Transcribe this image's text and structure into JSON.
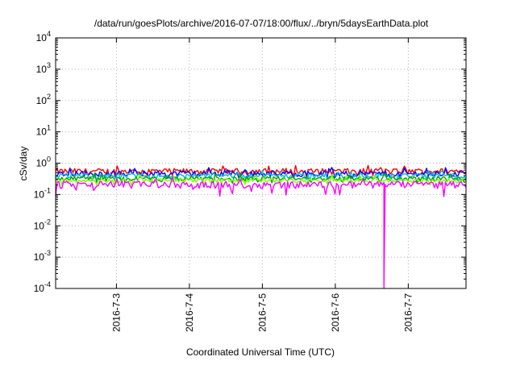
{
  "chart_data": {
    "type": "line",
    "title": "/data/run/goesPlots/archive/2016-07-07/18:00/flux/../bryn/5daysEarthData.plot",
    "xlabel": "Coordinated Universal Time (UTC)",
    "ylabel": "cSv/day",
    "yscale": "log",
    "ylim": [
      0.0001,
      10000
    ],
    "xlim": [
      "2016-07-02 04:00",
      "2016-07-07 19:00"
    ],
    "grid": true,
    "x_ticks": [
      "2016-7-3",
      "2016-7-4",
      "2016-7-5",
      "2016-7-6",
      "2016-7-7"
    ],
    "y_ticks": [
      {
        "base": "10",
        "exp": "-4",
        "value": 0.0001
      },
      {
        "base": "10",
        "exp": "-3",
        "value": 0.001
      },
      {
        "base": "10",
        "exp": "-2",
        "value": 0.01
      },
      {
        "base": "10",
        "exp": "-1",
        "value": 0.1
      },
      {
        "base": "10",
        "exp": "0",
        "value": 1
      },
      {
        "base": "10",
        "exp": "1",
        "value": 10
      },
      {
        "base": "10",
        "exp": "2",
        "value": 100
      },
      {
        "base": "10",
        "exp": "3",
        "value": 1000
      },
      {
        "base": "10",
        "exp": "4",
        "value": 10000
      }
    ],
    "series": [
      {
        "color": "#ff0000",
        "level": 0.55,
        "spread": 0.14
      },
      {
        "color": "#0000ff",
        "level": 0.47,
        "spread": 0.13
      },
      {
        "color": "#00bcd4",
        "level": 0.4,
        "spread": 0.11
      },
      {
        "color": "#00a000",
        "level": 0.32,
        "spread": 0.1
      },
      {
        "color": "#7fff00",
        "level": 0.28,
        "spread": 0.09
      },
      {
        "color": "#ff00ff",
        "level": 0.21,
        "spread": 0.16
      }
    ],
    "annotations": [
      {
        "series_color": "#ff00ff",
        "x": "2016-07-06 16:00",
        "y": 0.0001,
        "note": "dip"
      }
    ]
  }
}
